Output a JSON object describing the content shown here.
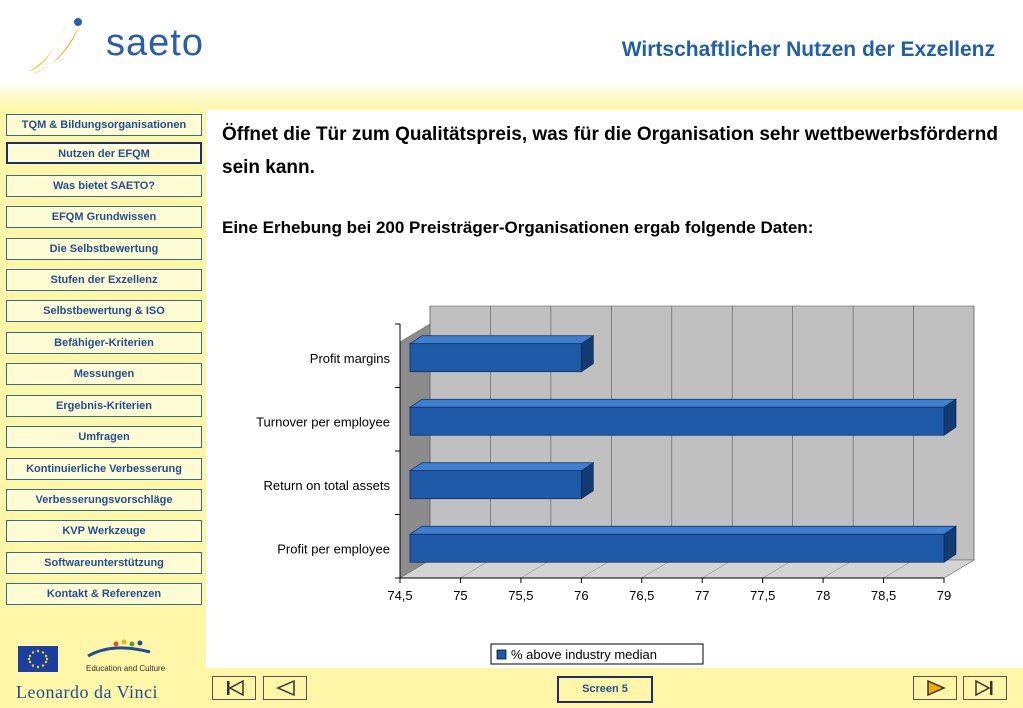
{
  "header": {
    "logo_text": "saeto",
    "title": "Wirtschaftlicher Nutzen der Exzellenz"
  },
  "sidebar": {
    "items": [
      {
        "label": "TQM & Bildungsorganisationen",
        "active": false
      },
      {
        "label": "Nutzen der EFQM",
        "active": true
      },
      {
        "label": "Was bietet SAETO?",
        "active": false
      },
      {
        "label": "EFQM Grundwissen",
        "active": false
      },
      {
        "label": "Die Selbstbewertung",
        "active": false
      },
      {
        "label": "Stufen der Exzellenz",
        "active": false
      },
      {
        "label": "Selbstbewertung & ISO",
        "active": false
      },
      {
        "label": "Befähiger-Kriterien",
        "active": false
      },
      {
        "label": "Messungen",
        "active": false
      },
      {
        "label": "Ergebnis-Kriterien",
        "active": false
      },
      {
        "label": "Umfragen",
        "active": false
      },
      {
        "label": "Kontinuierliche Verbesserung",
        "active": false
      },
      {
        "label": "Verbesserungsvorschläge",
        "active": false
      },
      {
        "label": "KVP Werkzeuge",
        "active": false
      },
      {
        "label": "Softwareunterstützung",
        "active": false
      },
      {
        "label": "Kontakt & Referenzen",
        "active": false
      }
    ],
    "ec_text": "Education and Culture",
    "program": "Leonardo da Vinci"
  },
  "main": {
    "paragraph1": "Öffnet die Tür zum Qualitätspreis, was für die Organisation sehr wettbewerbsfördernd sein kann.",
    "paragraph2": "Eine Erhebung bei 200 Preisträger-Organisationen ergab folgende Daten:"
  },
  "chart_data": {
    "type": "bar",
    "orientation": "horizontal",
    "categories": [
      "Profit margins",
      "Turnover per employee",
      "Return on total assets",
      "Profit per employee"
    ],
    "series": [
      {
        "name": "% above industry median",
        "values": [
          76.0,
          79.0,
          76.0,
          79.0
        ]
      }
    ],
    "xlim": [
      74.5,
      79
    ],
    "x_ticks": [
      "74,5",
      "75",
      "75,5",
      "76",
      "76,5",
      "77",
      "77,5",
      "78",
      "78,5",
      "79"
    ],
    "grid": true,
    "legend_position": "bottom",
    "colors": {
      "bar": "#1f5aa8",
      "bar_side": "#123a73",
      "bar_top": "#3f7fd0",
      "plot_bg": "#c0c0c0"
    }
  },
  "footer": {
    "screen_label": "Screen 5"
  },
  "colors": {
    "accent": "#1f5fae",
    "yellow": "#fff6a8"
  }
}
